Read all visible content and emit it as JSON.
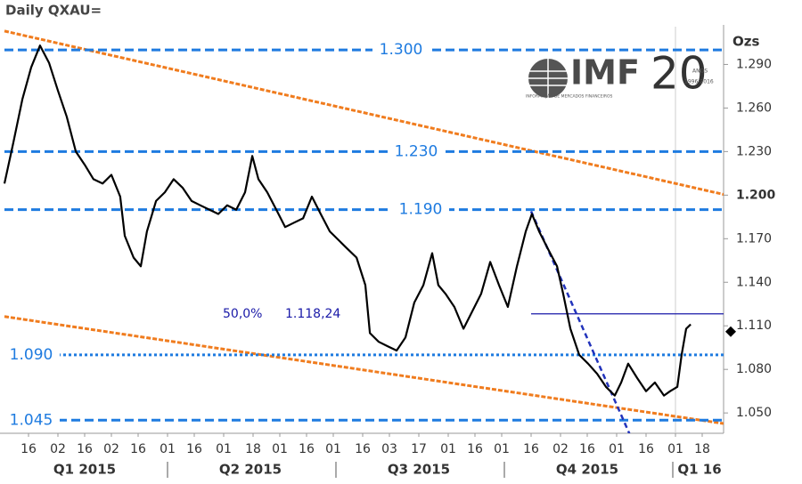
{
  "chart_data": {
    "type": "line",
    "title": "Daily QXAU=",
    "y_axis_label": "Ozs",
    "color": "#000000",
    "x": [
      0,
      3.3,
      6.7,
      10,
      13.3,
      16.7,
      20,
      23.3,
      26.7,
      30,
      33.3,
      36.7,
      40,
      43.3,
      45,
      48.3,
      51,
      53.3,
      56.7,
      60,
      63.3,
      66.7,
      70,
      73.3,
      76.7,
      80,
      83.3,
      86.7,
      90,
      92.7,
      95,
      98.3,
      101.7,
      105,
      108.3,
      111.7,
      115,
      118.3,
      121.7,
      125,
      128.3,
      131.7,
      135,
      136.7,
      140,
      143.3,
      146.7,
      150,
      153.3,
      156.7,
      160,
      162.3,
      165,
      168.3,
      171.7,
      175,
      178.3,
      181.7,
      185,
      188.3,
      191.7,
      195,
      197.3,
      200,
      203.3,
      206.7,
      209,
      211.7,
      215,
      218.3,
      221.7,
      225,
      228.3,
      230.7,
      233.3,
      236.7,
      240,
      243.3,
      246.7,
      249,
      251.7,
      253.3,
      255,
      256.7
    ],
    "values": [
      1.208,
      1.236,
      1.266,
      1.288,
      1.303,
      1.291,
      1.272,
      1.254,
      1.23,
      1.221,
      1.211,
      1.208,
      1.214,
      1.199,
      1.172,
      1.157,
      1.151,
      1.175,
      1.196,
      1.202,
      1.211,
      1.205,
      1.196,
      1.193,
      1.19,
      1.187,
      1.193,
      1.19,
      1.202,
      1.227,
      1.211,
      1.202,
      1.19,
      1.178,
      1.181,
      1.184,
      1.199,
      1.187,
      1.175,
      1.169,
      1.163,
      1.157,
      1.138,
      1.105,
      1.099,
      1.096,
      1.093,
      1.102,
      1.126,
      1.138,
      1.16,
      1.138,
      1.132,
      1.123,
      1.108,
      1.12,
      1.132,
      1.154,
      1.138,
      1.123,
      1.151,
      1.175,
      1.187,
      1.175,
      1.163,
      1.151,
      1.132,
      1.108,
      1.09,
      1.084,
      1.077,
      1.068,
      1.062,
      1.071,
      1.084,
      1.074,
      1.065,
      1.071,
      1.062,
      1.065,
      1.068,
      1.09,
      1.108,
      1.111
    ],
    "xlim": [
      0,
      269
    ],
    "ylim": [
      1.036,
      1.316
    ],
    "xticks": [
      {
        "value": 9,
        "label": "16"
      },
      {
        "value": 20,
        "label": "02"
      },
      {
        "value": 30,
        "label": "16"
      },
      {
        "value": 40,
        "label": "02"
      },
      {
        "value": 50,
        "label": "16"
      },
      {
        "value": 61,
        "label": "01"
      },
      {
        "value": 71,
        "label": "16"
      },
      {
        "value": 82,
        "label": "01"
      },
      {
        "value": 93,
        "label": "18"
      },
      {
        "value": 103,
        "label": "01"
      },
      {
        "value": 113,
        "label": "16"
      },
      {
        "value": 123,
        "label": "01"
      },
      {
        "value": 134,
        "label": "16"
      },
      {
        "value": 144,
        "label": "03"
      },
      {
        "value": 155,
        "label": "17"
      },
      {
        "value": 166,
        "label": "01"
      },
      {
        "value": 176,
        "label": "16"
      },
      {
        "value": 186,
        "label": "01"
      },
      {
        "value": 197,
        "label": "16"
      },
      {
        "value": 208,
        "label": "02"
      },
      {
        "value": 218,
        "label": "16"
      },
      {
        "value": 229,
        "label": "01"
      },
      {
        "value": 240,
        "label": "16"
      },
      {
        "value": 251,
        "label": "01"
      },
      {
        "value": 261,
        "label": "18"
      }
    ],
    "yticks": [
      {
        "value": 1.29,
        "label": "1.290"
      },
      {
        "value": 1.26,
        "label": "1.260"
      },
      {
        "value": 1.23,
        "label": "1.230"
      },
      {
        "value": 1.2,
        "label": "1.200"
      },
      {
        "value": 1.17,
        "label": "1.170"
      },
      {
        "value": 1.14,
        "label": "1.140"
      },
      {
        "value": 1.11,
        "label": "1.110"
      },
      {
        "value": 1.08,
        "label": "1.080"
      },
      {
        "value": 1.05,
        "label": "1.050"
      }
    ],
    "emphasized_ytick": 1.2,
    "quarters": [
      {
        "value": 30,
        "label": "Q1 2015"
      },
      {
        "value": 92,
        "label": "Q2 2015"
      },
      {
        "value": 155,
        "label": "Q3 2015"
      },
      {
        "value": 218,
        "label": "Q4 2015"
      },
      {
        "value": 260,
        "label": "Q1 16"
      }
    ],
    "quarter_breaks": [
      61,
      124,
      187,
      250
    ],
    "year_line": 251,
    "levels": [
      {
        "value": 1.3,
        "label": "1.300",
        "style": "dashed"
      },
      {
        "value": 1.23,
        "label": "1.230",
        "style": "dashed"
      },
      {
        "value": 1.19,
        "label": "1.190",
        "style": "dashed"
      },
      {
        "value": 1.09,
        "label": "1.090",
        "style": "dotted"
      },
      {
        "value": 1.045,
        "label": "1.045",
        "style": "dashed"
      }
    ],
    "level_color": "#1e7be0",
    "channel_color": "#f07c1e",
    "channel": [
      {
        "x": [
          0,
          269
        ],
        "y": [
          1.313,
          1.2005
        ]
      },
      {
        "x": [
          0,
          269
        ],
        "y": [
          1.1164,
          1.0427
        ]
      }
    ],
    "trendline": {
      "x": [
        197,
        234
      ],
      "y": [
        1.1889,
        1.0348
      ],
      "color": "#2233bb"
    },
    "fib": {
      "label": "50,0%",
      "value_label": "1.118,24",
      "value": 1.11824,
      "x": [
        197,
        269
      ],
      "color": "#1a1aa8"
    },
    "last_value": 1.106,
    "logo": {
      "name": "IMF",
      "years": "20",
      "anos": "ANOS",
      "period": "1996-2016",
      "subtitle": "INFORMAÇÃO DE MERCADOS FINANCEIROS"
    }
  }
}
